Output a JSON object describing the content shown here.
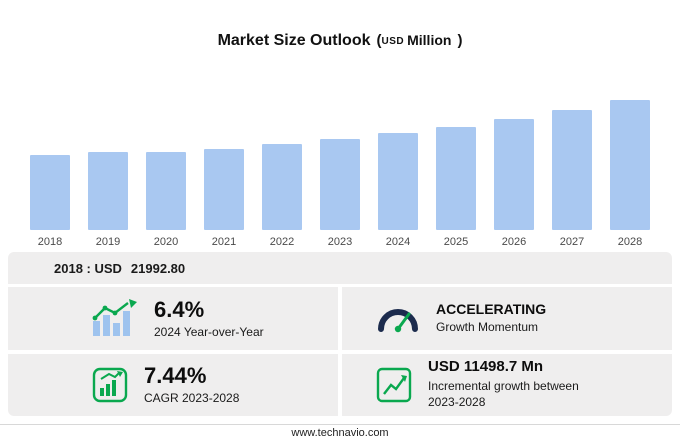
{
  "title": {
    "main": "Market Size Outlook",
    "paren_left": "(",
    "currency": "USD",
    "unit": "Million",
    "paren_right": ")"
  },
  "chart_data": {
    "type": "bar",
    "title": "Market Size Outlook (USD Million)",
    "categories": [
      "2018",
      "2019",
      "2020",
      "2021",
      "2022",
      "2023",
      "2024",
      "2025",
      "2026",
      "2027",
      "2028"
    ],
    "values": [
      21992.8,
      22980,
      22850,
      23900,
      25100,
      26642,
      28347,
      30300,
      32600,
      35200,
      38140
    ],
    "ylabel": "USD Million",
    "xlabel": "",
    "grid": false,
    "legend": "none",
    "bar_color": "#a9c8f1"
  },
  "baseline": {
    "label": "2018 : USD",
    "value": "21992.80"
  },
  "stats": {
    "yoy": {
      "value": "6.4%",
      "label": "2024 Year-over-Year",
      "icon": "bar-growth-icon"
    },
    "momentum": {
      "value": "ACCELERATING",
      "label": "Growth Momentum",
      "icon": "gauge-icon"
    },
    "cagr": {
      "value": "7.44%",
      "label": "CAGR 2023-2028",
      "icon": "chart-box-icon"
    },
    "incremental": {
      "value": "USD 11498.7 Mn",
      "label": "Incremental growth between 2023-2028",
      "icon": "trend-box-icon"
    }
  },
  "footer": {
    "url": "www.technavio.com"
  },
  "colors": {
    "bar": "#a9c8f1",
    "panel": "#efeeee",
    "green": "#0aa84f",
    "navy": "#1c2b4d"
  }
}
